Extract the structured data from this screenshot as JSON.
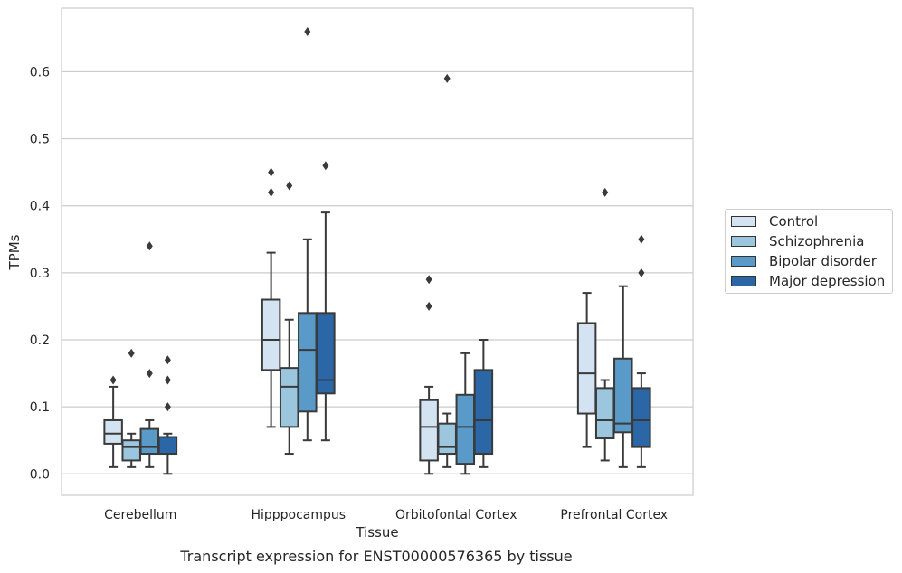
{
  "caption": "Transcript expression for ENST00000576365 by tissue",
  "legend": {
    "items": [
      {
        "label": "Control",
        "color": "#d4e3f1"
      },
      {
        "label": "Schizophrenia",
        "color": "#9bc6de"
      },
      {
        "label": "Bipolar disorder",
        "color": "#5a9ac8"
      },
      {
        "label": "Major depression",
        "color": "#2b67a6"
      }
    ]
  },
  "chart_data": {
    "type": "box",
    "xlabel": "Tissue",
    "ylabel": "TPMs",
    "ylim": [
      -0.032,
      0.695
    ],
    "yticks": [
      0.0,
      0.1,
      0.2,
      0.3,
      0.4,
      0.5,
      0.6
    ],
    "ytick_labels": [
      "0.0",
      "0.1",
      "0.2",
      "0.3",
      "0.4",
      "0.5",
      "0.6"
    ],
    "grid": "horizontal",
    "legend_position": "right",
    "categories": [
      "Cerebellum",
      "Hipppocampus",
      "Orbitofontal Cortex",
      "Prefrontal Cortex"
    ],
    "series": [
      {
        "name": "Control",
        "boxes": [
          {
            "whislo": 0.01,
            "q1": 0.045,
            "med": 0.06,
            "q3": 0.08,
            "whishi": 0.13,
            "fliers": [
              0.14
            ]
          },
          {
            "whislo": 0.07,
            "q1": 0.155,
            "med": 0.2,
            "q3": 0.26,
            "whishi": 0.33,
            "fliers": [
              0.42,
              0.45
            ]
          },
          {
            "whislo": 0.0,
            "q1": 0.02,
            "med": 0.07,
            "q3": 0.11,
            "whishi": 0.13,
            "fliers": [
              0.25,
              0.29
            ]
          },
          {
            "whislo": 0.04,
            "q1": 0.09,
            "med": 0.15,
            "q3": 0.225,
            "whishi": 0.27,
            "fliers": []
          }
        ]
      },
      {
        "name": "Schizophrenia",
        "boxes": [
          {
            "whislo": 0.01,
            "q1": 0.02,
            "med": 0.04,
            "q3": 0.05,
            "whishi": 0.06,
            "fliers": [
              0.18
            ]
          },
          {
            "whislo": 0.03,
            "q1": 0.07,
            "med": 0.13,
            "q3": 0.158,
            "whishi": 0.23,
            "fliers": [
              0.43
            ]
          },
          {
            "whislo": 0.01,
            "q1": 0.03,
            "med": 0.04,
            "q3": 0.075,
            "whishi": 0.09,
            "fliers": [
              0.59
            ]
          },
          {
            "whislo": 0.02,
            "q1": 0.053,
            "med": 0.08,
            "q3": 0.128,
            "whishi": 0.14,
            "fliers": [
              0.42
            ]
          }
        ]
      },
      {
        "name": "Bipolar disorder",
        "boxes": [
          {
            "whislo": 0.01,
            "q1": 0.03,
            "med": 0.04,
            "q3": 0.067,
            "whishi": 0.08,
            "fliers": [
              0.15,
              0.34
            ]
          },
          {
            "whislo": 0.05,
            "q1": 0.093,
            "med": 0.185,
            "q3": 0.24,
            "whishi": 0.35,
            "fliers": [
              0.66
            ]
          },
          {
            "whislo": 0.0,
            "q1": 0.015,
            "med": 0.07,
            "q3": 0.118,
            "whishi": 0.18,
            "fliers": []
          },
          {
            "whislo": 0.01,
            "q1": 0.062,
            "med": 0.075,
            "q3": 0.172,
            "whishi": 0.28,
            "fliers": []
          }
        ]
      },
      {
        "name": "Major depression",
        "boxes": [
          {
            "whislo": 0.0,
            "q1": 0.03,
            "med": 0.03,
            "q3": 0.055,
            "whishi": 0.06,
            "fliers": [
              0.1,
              0.14,
              0.17
            ]
          },
          {
            "whislo": 0.05,
            "q1": 0.12,
            "med": 0.14,
            "q3": 0.24,
            "whishi": 0.39,
            "fliers": [
              0.46
            ]
          },
          {
            "whislo": 0.01,
            "q1": 0.03,
            "med": 0.08,
            "q3": 0.155,
            "whishi": 0.2,
            "fliers": []
          },
          {
            "whislo": 0.01,
            "q1": 0.04,
            "med": 0.08,
            "q3": 0.128,
            "whishi": 0.15,
            "fliers": [
              0.3,
              0.35
            ]
          }
        ]
      }
    ]
  }
}
